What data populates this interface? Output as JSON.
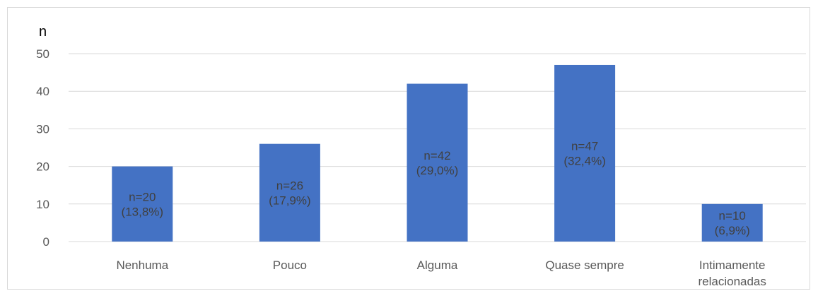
{
  "chart_data": {
    "type": "bar",
    "ylabel": "n",
    "xlabel": "",
    "ylim": [
      0,
      50
    ],
    "yticks": [
      0,
      10,
      20,
      30,
      40,
      50
    ],
    "grid": true,
    "bar_color": "#4472C4",
    "categories": [
      "Nenhuma",
      "Pouco",
      "Alguma",
      "Quase sempre",
      "Intimamente relacionadas"
    ],
    "values": [
      20,
      26,
      42,
      47,
      10
    ],
    "data_labels": [
      [
        "n=20",
        "(13,8%)"
      ],
      [
        "n=26",
        "(17,9%)"
      ],
      [
        "n=42",
        "(29,0%)"
      ],
      [
        "n=47",
        "(32,4%)"
      ],
      [
        "n=10",
        "(6,9%)"
      ]
    ]
  }
}
